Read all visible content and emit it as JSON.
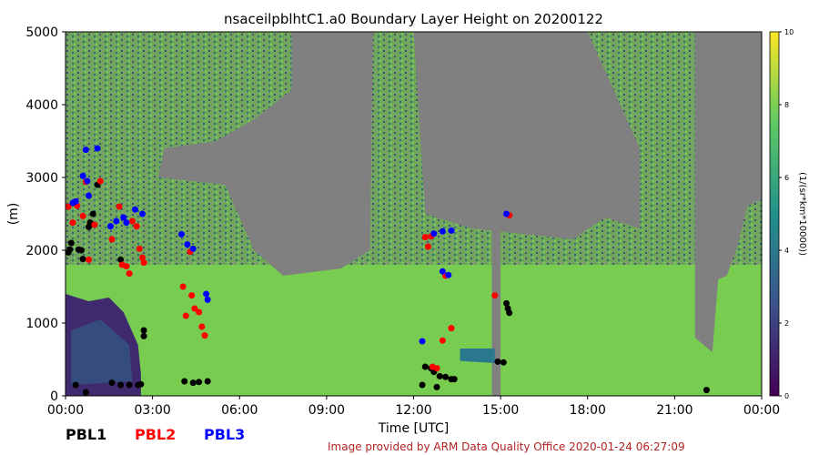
{
  "chart_data": {
    "type": "heatmap",
    "title": "nsaceilpblhtC1.a0 Boundary Layer Height on 20200122",
    "xlabel": "Time [UTC]",
    "ylabel": "(m)",
    "xlim": [
      0,
      24
    ],
    "ylim": [
      0,
      5000
    ],
    "x_ticks": [
      "00:00",
      "03:00",
      "06:00",
      "09:00",
      "12:00",
      "15:00",
      "18:00",
      "21:00",
      "00:00"
    ],
    "y_ticks": [
      "0",
      "1000",
      "2000",
      "3000",
      "4000",
      "5000"
    ],
    "colorbar": {
      "label": "(1/(sr*km*10000))",
      "range": [
        0,
        10
      ],
      "ticks": [
        "0",
        "2",
        "4",
        "6",
        "8",
        "10"
      ]
    },
    "colors": {
      "background_green": "#78cc50",
      "no_signal_gray": "#808080",
      "low_purple": "#3f2a70",
      "mid_teal": "#2a788e",
      "pbl1": "#000000",
      "pbl2": "#ff0000",
      "pbl3": "#0000ff",
      "credit": "#b22222"
    },
    "series": [
      {
        "name": "PBL1",
        "color": "#000000",
        "points": [
          [
            0.1,
            1970
          ],
          [
            0.15,
            2010
          ],
          [
            0.2,
            2100
          ],
          [
            0.45,
            2010
          ],
          [
            0.55,
            2000
          ],
          [
            0.8,
            2320
          ],
          [
            0.85,
            2380
          ],
          [
            0.95,
            2500
          ],
          [
            1.1,
            2900
          ],
          [
            0.6,
            1880
          ],
          [
            0.35,
            150
          ],
          [
            0.7,
            50
          ],
          [
            1.6,
            180
          ],
          [
            1.9,
            150
          ],
          [
            2.2,
            150
          ],
          [
            2.5,
            150
          ],
          [
            2.6,
            160
          ],
          [
            2.7,
            900
          ],
          [
            2.7,
            820
          ],
          [
            1.9,
            1870
          ],
          [
            4.1,
            200
          ],
          [
            4.4,
            180
          ],
          [
            4.6,
            190
          ],
          [
            4.9,
            200
          ],
          [
            12.3,
            150
          ],
          [
            12.4,
            400
          ],
          [
            12.6,
            380
          ],
          [
            12.7,
            330
          ],
          [
            12.8,
            120
          ],
          [
            12.9,
            270
          ],
          [
            13.1,
            260
          ],
          [
            13.3,
            230
          ],
          [
            13.4,
            230
          ],
          [
            14.9,
            470
          ],
          [
            15.1,
            460
          ],
          [
            15.2,
            1270
          ],
          [
            15.25,
            1200
          ],
          [
            15.3,
            1140
          ],
          [
            22.1,
            80
          ]
        ]
      },
      {
        "name": "PBL2",
        "color": "#ff0000",
        "points": [
          [
            0.1,
            2600
          ],
          [
            0.25,
            2380
          ],
          [
            0.4,
            2610
          ],
          [
            0.6,
            2470
          ],
          [
            0.7,
            2940
          ],
          [
            0.8,
            1870
          ],
          [
            1.0,
            2350
          ],
          [
            1.2,
            2950
          ],
          [
            1.6,
            2150
          ],
          [
            1.85,
            2600
          ],
          [
            1.95,
            1800
          ],
          [
            2.1,
            1780
          ],
          [
            2.2,
            1680
          ],
          [
            2.3,
            2400
          ],
          [
            2.45,
            2330
          ],
          [
            2.55,
            2020
          ],
          [
            2.65,
            1900
          ],
          [
            2.7,
            1830
          ],
          [
            4.05,
            1500
          ],
          [
            4.15,
            1100
          ],
          [
            4.35,
            1380
          ],
          [
            4.45,
            1200
          ],
          [
            4.6,
            1150
          ],
          [
            4.7,
            950
          ],
          [
            4.8,
            830
          ],
          [
            4.3,
            1980
          ],
          [
            12.4,
            2180
          ],
          [
            12.5,
            2050
          ],
          [
            12.6,
            2190
          ],
          [
            12.65,
            400
          ],
          [
            12.8,
            380
          ],
          [
            13.0,
            760
          ],
          [
            13.1,
            1650
          ],
          [
            13.3,
            930
          ],
          [
            14.8,
            1380
          ],
          [
            15.3,
            2480
          ]
        ]
      },
      {
        "name": "PBL3",
        "color": "#0000ff",
        "points": [
          [
            0.25,
            2650
          ],
          [
            0.35,
            2670
          ],
          [
            0.6,
            3020
          ],
          [
            0.7,
            3380
          ],
          [
            0.75,
            2950
          ],
          [
            0.8,
            2750
          ],
          [
            1.1,
            3400
          ],
          [
            1.55,
            2330
          ],
          [
            1.75,
            2400
          ],
          [
            2.0,
            2450
          ],
          [
            2.1,
            2380
          ],
          [
            2.4,
            2560
          ],
          [
            2.65,
            2500
          ],
          [
            4.0,
            2220
          ],
          [
            4.2,
            2080
          ],
          [
            4.4,
            2020
          ],
          [
            4.85,
            1400
          ],
          [
            4.9,
            1320
          ],
          [
            12.3,
            750
          ],
          [
            12.7,
            2230
          ],
          [
            13.0,
            2260
          ],
          [
            13.3,
            2270
          ],
          [
            13.0,
            1710
          ],
          [
            13.2,
            1660
          ],
          [
            15.2,
            2500
          ]
        ]
      }
    ],
    "legend": [
      "PBL1",
      "PBL2",
      "PBL3"
    ],
    "legend_placement": "bottom-left",
    "credit": "Image provided by ARM Data Quality Office 2020-01-24 06:27:09"
  }
}
